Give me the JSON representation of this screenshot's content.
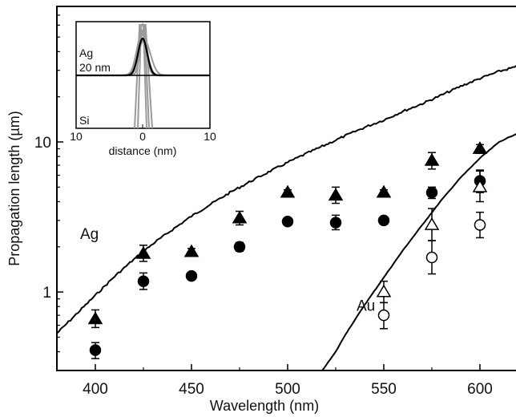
{
  "chart_data": {
    "type": "scatter",
    "xlabel": "Wavelength (nm)",
    "ylabel": "Propagation length (µm)",
    "xlim": [
      380,
      620
    ],
    "ylim": [
      0.3,
      80
    ],
    "y_scale": "log",
    "x_ticks": [
      400,
      450,
      500,
      550,
      600
    ],
    "y_ticks": [
      {
        "value": 1,
        "label": "1"
      },
      {
        "value": 10,
        "label": "10"
      }
    ],
    "series": [
      {
        "name": "Ag",
        "kind": "line",
        "points": [
          [
            380,
            0.53
          ],
          [
            390,
            0.71
          ],
          [
            400,
            0.95
          ],
          [
            410,
            1.27
          ],
          [
            420,
            1.65
          ],
          [
            430,
            2.1
          ],
          [
            440,
            2.6
          ],
          [
            450,
            3.2
          ],
          [
            460,
            3.85
          ],
          [
            470,
            4.6
          ],
          [
            480,
            5.4
          ],
          [
            490,
            6.3
          ],
          [
            500,
            7.3
          ],
          [
            510,
            8.4
          ],
          [
            520,
            9.6
          ],
          [
            530,
            11.0
          ],
          [
            540,
            12.5
          ],
          [
            550,
            14.0
          ],
          [
            560,
            16.0
          ],
          [
            570,
            18.0
          ],
          [
            580,
            20.5
          ],
          [
            590,
            23.5
          ],
          [
            600,
            26.5
          ],
          [
            610,
            29.5
          ],
          [
            620,
            32.0
          ]
        ]
      },
      {
        "name": "Au",
        "kind": "line",
        "points": [
          [
            518,
            0.3
          ],
          [
            525,
            0.4
          ],
          [
            530,
            0.52
          ],
          [
            540,
            0.82
          ],
          [
            550,
            1.25
          ],
          [
            560,
            1.9
          ],
          [
            570,
            2.8
          ],
          [
            580,
            4.1
          ],
          [
            590,
            5.8
          ],
          [
            600,
            7.8
          ],
          [
            610,
            10.0
          ],
          [
            620,
            11.5
          ]
        ]
      },
      {
        "marker": "filled-triangle",
        "points": [
          {
            "x": 400,
            "y": 0.66,
            "lo": 0.58,
            "hi": 0.76
          },
          {
            "x": 425,
            "y": 1.8,
            "lo": 1.6,
            "hi": 2.05
          },
          {
            "x": 450,
            "y": 1.85,
            "lo": 1.75,
            "hi": 1.95
          },
          {
            "x": 475,
            "y": 3.1,
            "lo": 2.8,
            "hi": 3.45
          },
          {
            "x": 500,
            "y": 4.6,
            "lo": 4.45,
            "hi": 4.8
          },
          {
            "x": 525,
            "y": 4.4,
            "lo": 3.9,
            "hi": 5.0
          },
          {
            "x": 550,
            "y": 4.6,
            "lo": 4.4,
            "hi": 4.8
          },
          {
            "x": 575,
            "y": 7.5,
            "lo": 6.6,
            "hi": 8.5
          },
          {
            "x": 600,
            "y": 9.0,
            "lo": 8.4,
            "hi": 9.6
          }
        ]
      },
      {
        "marker": "filled-circle",
        "points": [
          {
            "x": 400,
            "y": 0.41,
            "lo": 0.36,
            "hi": 0.46
          },
          {
            "x": 425,
            "y": 1.18,
            "lo": 1.04,
            "hi": 1.34
          },
          {
            "x": 450,
            "y": 1.28,
            "lo": 1.22,
            "hi": 1.34
          },
          {
            "x": 475,
            "y": 2.0,
            "lo": 1.87,
            "hi": 2.14
          },
          {
            "x": 500,
            "y": 2.95,
            "lo": 2.88,
            "hi": 3.02
          },
          {
            "x": 525,
            "y": 2.9,
            "lo": 2.6,
            "hi": 3.25
          },
          {
            "x": 550,
            "y": 3.0,
            "lo": 2.93,
            "hi": 3.07
          },
          {
            "x": 575,
            "y": 4.6,
            "lo": 4.2,
            "hi": 5.0
          },
          {
            "x": 600,
            "y": 5.5,
            "lo": 4.6,
            "hi": 6.5
          }
        ]
      },
      {
        "marker": "open-triangle",
        "points": [
          {
            "x": 550,
            "y": 1.0,
            "lo": 0.85,
            "hi": 1.18
          },
          {
            "x": 575,
            "y": 2.8,
            "lo": 2.2,
            "hi": 3.6
          },
          {
            "x": 600,
            "y": 5.0,
            "lo": 4.0,
            "hi": 6.4
          }
        ]
      },
      {
        "marker": "open-circle",
        "points": [
          {
            "x": 550,
            "y": 0.7,
            "lo": 0.57,
            "hi": 0.85
          },
          {
            "x": 575,
            "y": 1.7,
            "lo": 1.32,
            "hi": 2.2
          },
          {
            "x": 600,
            "y": 2.8,
            "lo": 2.3,
            "hi": 3.4
          }
        ]
      }
    ],
    "annotations": [
      {
        "text": "Ag",
        "x": 390,
        "y": 2.4
      },
      {
        "text": "Au",
        "x": 535,
        "y": 0.8
      }
    ],
    "inset": {
      "xlabel": "distance (nm)",
      "x_tick_labels": [
        "10",
        "0",
        "10"
      ],
      "top_label_line1": "Ag",
      "top_label_line2": "20 nm",
      "bottom_label": "Si"
    }
  }
}
